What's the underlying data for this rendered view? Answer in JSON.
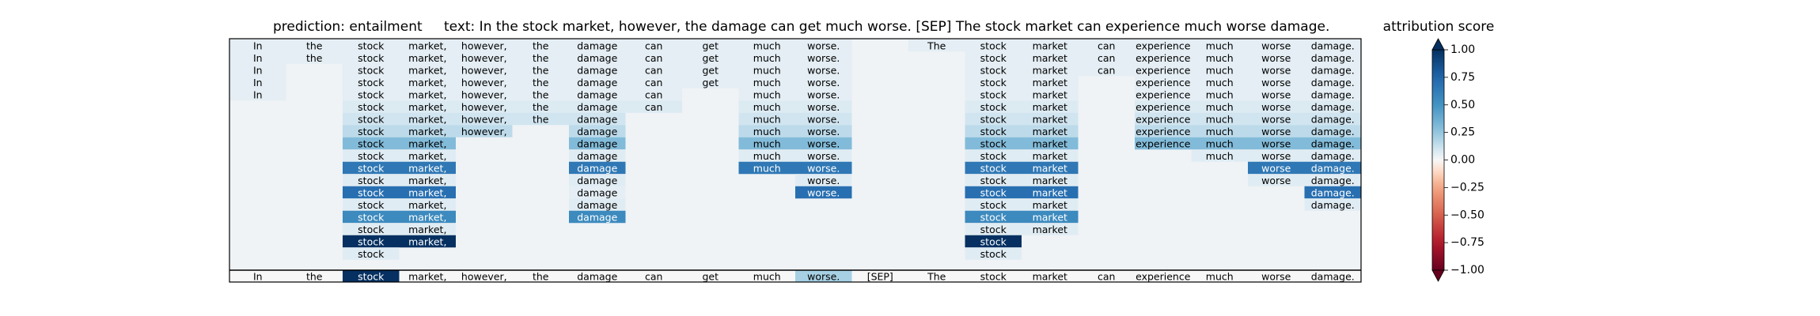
{
  "chart_data": {
    "type": "heatmap",
    "title": {
      "prediction": "prediction:  entailment",
      "text": "text:  In the stock market, however, the damage can get much worse. [SEP] The stock market can experience much worse damage."
    },
    "tokens": [
      "In",
      "the",
      "stock",
      "market,",
      "however,",
      "the",
      "damage",
      "can",
      "get",
      "much",
      "worse.",
      "[SEP]",
      "The",
      "stock",
      "market",
      "can",
      "experience",
      "much",
      "worse",
      "damage."
    ],
    "rows": [
      {
        "words": [
          0,
          1,
          2,
          3,
          4,
          5,
          6,
          7,
          8,
          9,
          10,
          12,
          13,
          14,
          15,
          16,
          17,
          18,
          19
        ],
        "scores": [
          0.05,
          0.05,
          0.05,
          0.05,
          0.05,
          0.05,
          0.05,
          0.05,
          0.05,
          0.05,
          0.05,
          0.05,
          0.05,
          0.05,
          0.05,
          0.05,
          0.05,
          0.05,
          0.05
        ]
      },
      {
        "words": [
          0,
          1,
          2,
          3,
          4,
          5,
          6,
          7,
          8,
          9,
          10,
          13,
          14,
          15,
          16,
          17,
          18,
          19
        ],
        "scores": [
          0.05,
          0.05,
          0.05,
          0.05,
          0.05,
          0.05,
          0.05,
          0.05,
          0.05,
          0.05,
          0.05,
          0.05,
          0.05,
          0.05,
          0.05,
          0.05,
          0.05,
          0.05
        ]
      },
      {
        "words": [
          0,
          2,
          3,
          4,
          5,
          6,
          7,
          8,
          9,
          10,
          13,
          14,
          15,
          16,
          17,
          18,
          19
        ],
        "scores": [
          0.05,
          0.05,
          0.05,
          0.05,
          0.05,
          0.05,
          0.05,
          0.05,
          0.05,
          0.05,
          0.05,
          0.05,
          0.05,
          0.05,
          0.05,
          0.05,
          0.05
        ]
      },
      {
        "words": [
          0,
          2,
          3,
          4,
          5,
          6,
          7,
          8,
          9,
          10,
          13,
          14,
          16,
          17,
          18,
          19
        ],
        "scores": [
          0.05,
          0.05,
          0.05,
          0.05,
          0.05,
          0.05,
          0.05,
          0.05,
          0.05,
          0.05,
          0.05,
          0.05,
          0.05,
          0.05,
          0.05,
          0.05
        ]
      },
      {
        "words": [
          0,
          2,
          3,
          4,
          5,
          6,
          7,
          9,
          10,
          13,
          14,
          16,
          17,
          18,
          19
        ],
        "scores": [
          0.05,
          0.05,
          0.05,
          0.05,
          0.05,
          0.05,
          0.05,
          0.05,
          0.05,
          0.05,
          0.05,
          0.05,
          0.05,
          0.05,
          0.05
        ]
      },
      {
        "words": [
          2,
          3,
          4,
          5,
          6,
          7,
          9,
          10,
          13,
          14,
          16,
          17,
          18,
          19
        ],
        "scores": [
          0.07,
          0.07,
          0.07,
          0.07,
          0.07,
          0.07,
          0.07,
          0.07,
          0.07,
          0.07,
          0.07,
          0.07,
          0.07,
          0.07
        ]
      },
      {
        "words": [
          2,
          3,
          4,
          5,
          6,
          9,
          10,
          13,
          14,
          16,
          17,
          18,
          19
        ],
        "scores": [
          0.1,
          0.1,
          0.1,
          0.1,
          0.1,
          0.1,
          0.1,
          0.1,
          0.1,
          0.1,
          0.1,
          0.1,
          0.1
        ]
      },
      {
        "words": [
          2,
          3,
          4,
          6,
          9,
          10,
          13,
          14,
          16,
          17,
          18,
          19
        ],
        "scores": [
          0.15,
          0.15,
          0.15,
          0.15,
          0.15,
          0.15,
          0.15,
          0.15,
          0.15,
          0.15,
          0.15,
          0.15
        ]
      },
      {
        "words": [
          2,
          3,
          6,
          9,
          10,
          13,
          14,
          16,
          17,
          18,
          19
        ],
        "scores": [
          0.3,
          0.3,
          0.3,
          0.3,
          0.3,
          0.3,
          0.3,
          0.3,
          0.3,
          0.3,
          0.3
        ]
      },
      {
        "words": [
          2,
          3,
          6,
          9,
          10,
          13,
          14,
          17,
          18,
          19
        ],
        "scores": [
          0.06,
          0.06,
          0.06,
          0.06,
          0.06,
          0.06,
          0.06,
          0.06,
          0.06,
          0.06
        ]
      },
      {
        "words": [
          2,
          3,
          6,
          9,
          10,
          13,
          14,
          18,
          19
        ],
        "scores": [
          0.65,
          0.65,
          0.65,
          0.65,
          0.65,
          0.65,
          0.65,
          0.65,
          0.65
        ]
      },
      {
        "words": [
          2,
          3,
          6,
          10,
          13,
          14,
          18,
          19
        ],
        "scores": [
          0.06,
          0.06,
          0.06,
          0.06,
          0.06,
          0.06,
          0.06,
          0.06
        ]
      },
      {
        "words": [
          2,
          3,
          6,
          10,
          13,
          14,
          19
        ],
        "scores": [
          0.7,
          0.7,
          0.05,
          0.7,
          0.7,
          0.7,
          0.7
        ]
      },
      {
        "words": [
          2,
          3,
          6,
          13,
          14,
          19
        ],
        "scores": [
          0.06,
          0.06,
          0.06,
          0.06,
          0.06,
          0.06
        ]
      },
      {
        "words": [
          2,
          3,
          6,
          13,
          14
        ],
        "scores": [
          0.55,
          0.55,
          0.55,
          0.55,
          0.55
        ]
      },
      {
        "words": [
          2,
          3,
          13,
          14
        ],
        "scores": [
          0.06,
          0.06,
          0.06,
          0.06
        ]
      },
      {
        "words": [
          2,
          3,
          13
        ],
        "scores": [
          1.0,
          1.0,
          1.0
        ]
      },
      {
        "words": [
          2,
          13
        ],
        "scores": [
          0.06,
          0.06
        ]
      }
    ],
    "final_row": {
      "words": [
        0,
        1,
        2,
        3,
        4,
        5,
        6,
        7,
        8,
        9,
        10,
        11,
        12,
        13,
        14,
        15,
        16,
        17,
        18,
        19
      ],
      "scores": [
        0.0,
        0.0,
        1.0,
        0.0,
        0.0,
        0.0,
        0.0,
        0.0,
        0.0,
        0.0,
        0.2,
        0.0,
        0.0,
        0.0,
        0.0,
        0.0,
        0.0,
        0.0,
        0.0,
        0.0
      ]
    },
    "colorbar": {
      "label": "attribution score",
      "range": [
        -1.0,
        1.0
      ],
      "ticks": [
        "1.00",
        "0.75",
        "0.50",
        "0.25",
        "0.00",
        "−0.25",
        "−0.50",
        "−0.75",
        "−1.00"
      ],
      "tick_values": [
        1.0,
        0.75,
        0.5,
        0.25,
        0.0,
        -0.25,
        -0.5,
        -0.75,
        -1.0
      ],
      "colormap": "RdBu",
      "extend": "both"
    }
  }
}
